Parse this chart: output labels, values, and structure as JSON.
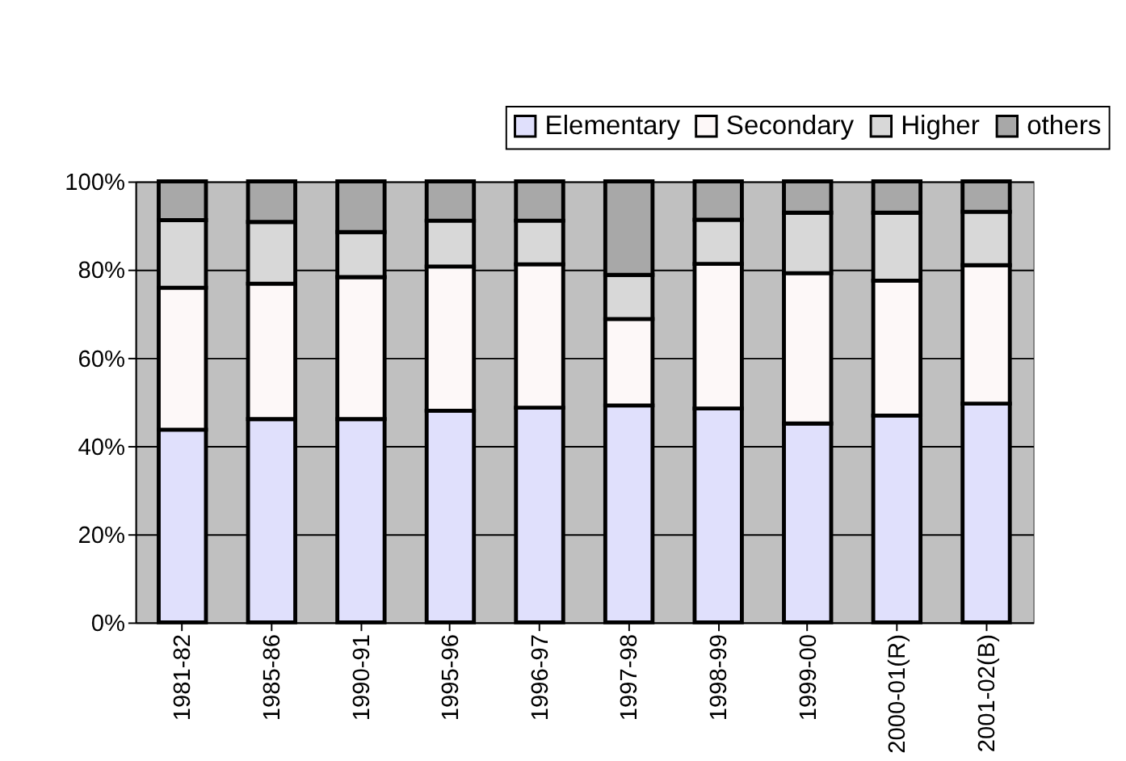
{
  "chart_data": {
    "type": "bar",
    "stacked": true,
    "categories": [
      "1981-82",
      "1985-86",
      "1990-91",
      "1995-96",
      "1996-97",
      "1997-98",
      "1998-99",
      "1999-00",
      "2000-01(R)",
      "2001-02(B)"
    ],
    "series": [
      {
        "name": "Elementary",
        "color": "#e0e0fc",
        "values": [
          43.7,
          46.1,
          46.1,
          48.0,
          48.7,
          49.2,
          48.5,
          45.1,
          46.9,
          49.6
        ]
      },
      {
        "name": "Secondary",
        "color": "#fdf8f8",
        "values": [
          32.2,
          30.7,
          32.2,
          32.7,
          32.5,
          19.6,
          32.8,
          34.1,
          30.6,
          31.4
        ]
      },
      {
        "name": "Higher",
        "color": "#d8d8d8",
        "values": [
          15.3,
          14.0,
          10.2,
          10.4,
          9.9,
          10.0,
          10.0,
          13.7,
          15.4,
          12.1
        ]
      },
      {
        "name": "others",
        "color": "#a8a8a8",
        "values": [
          8.8,
          9.2,
          11.5,
          8.9,
          8.9,
          21.2,
          8.7,
          7.1,
          7.1,
          6.9
        ]
      }
    ],
    "ylim": [
      0,
      100
    ],
    "yticks": [
      {
        "value": 0,
        "label": "0%"
      },
      {
        "value": 20,
        "label": "20%"
      },
      {
        "value": 40,
        "label": "40%"
      },
      {
        "value": 60,
        "label": "60%"
      },
      {
        "value": 80,
        "label": "80%"
      },
      {
        "value": 100,
        "label": "100%"
      }
    ],
    "grid": "y",
    "legend": "top right"
  }
}
